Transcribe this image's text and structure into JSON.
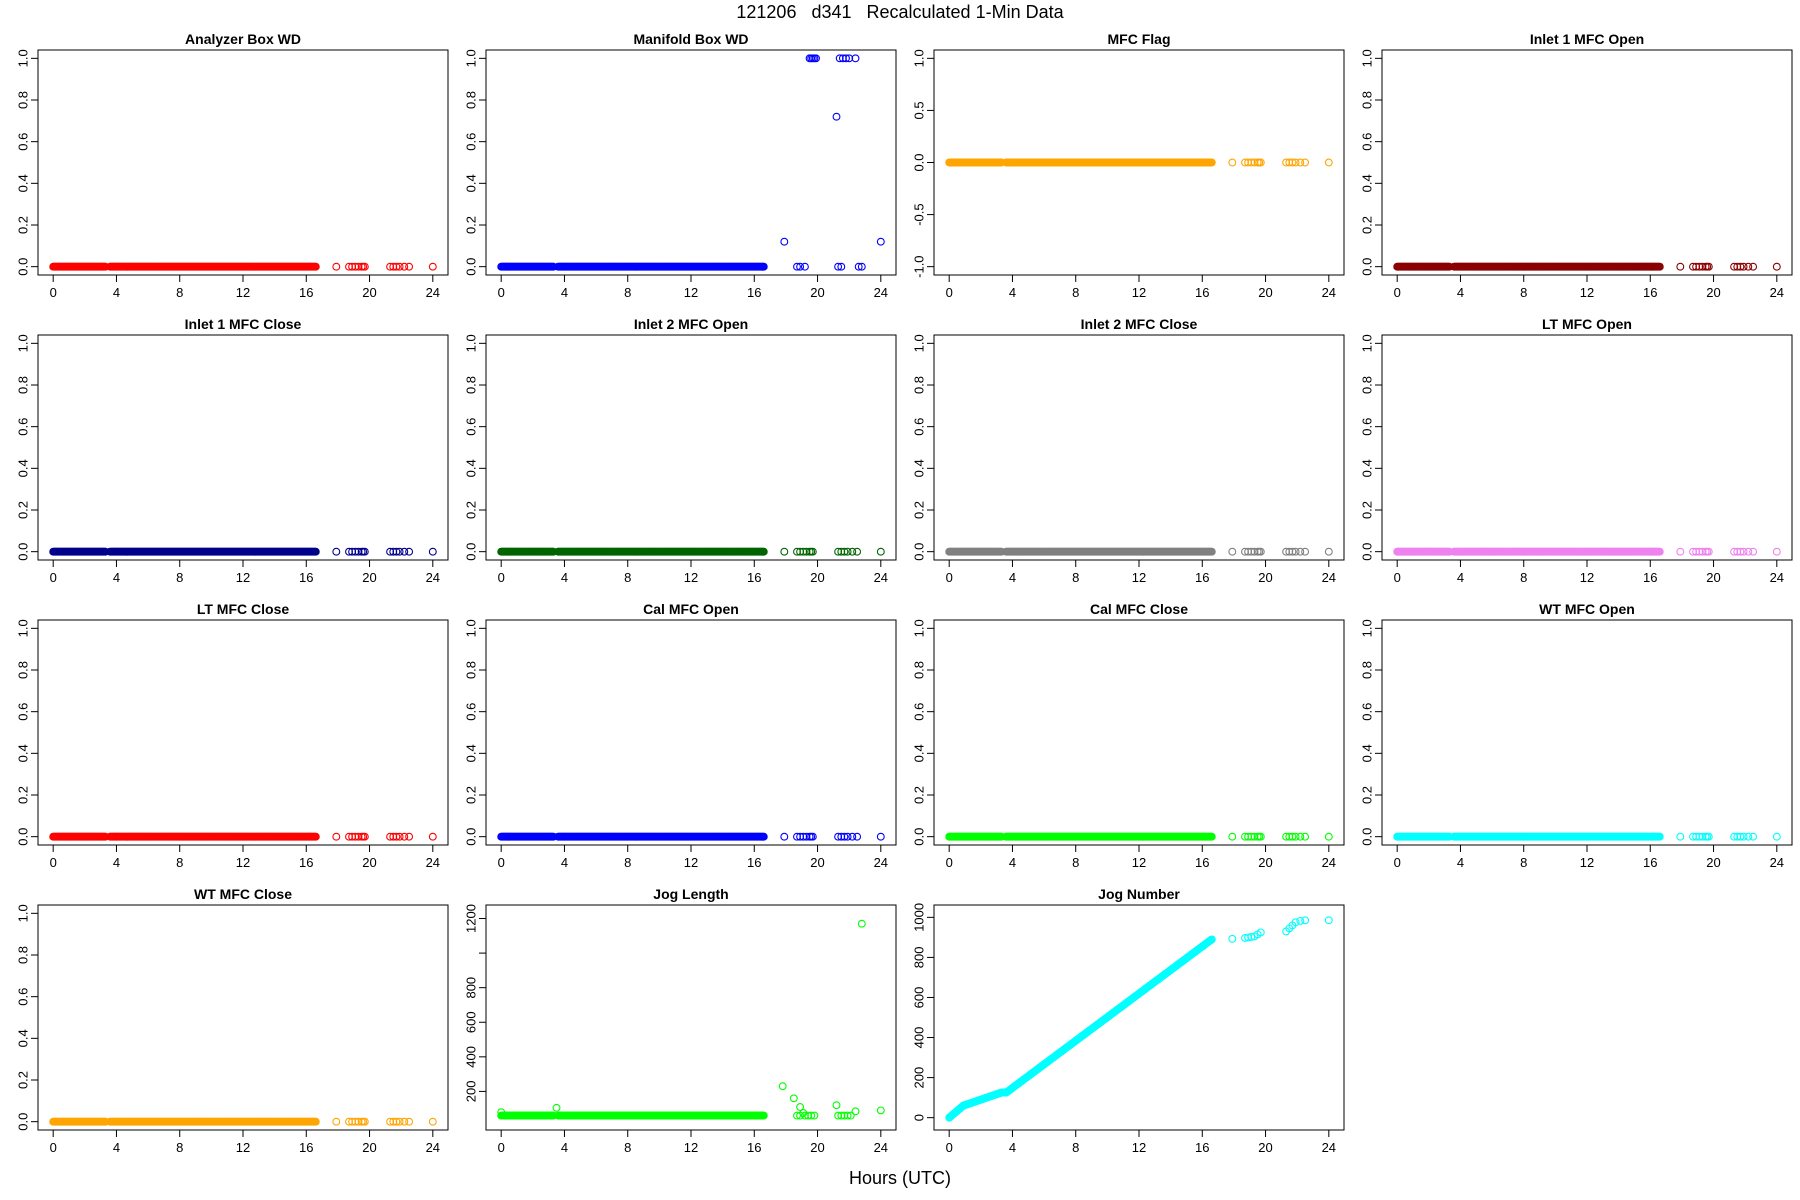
{
  "figure": {
    "title": "121206   d341   Recalculated 1-Min Data",
    "xlabel": "Hours (UTC)"
  },
  "chart_data": [
    {
      "type": "scatter",
      "title": "Analyzer Box WD",
      "color": "#ff0000",
      "xlim": [
        0,
        24
      ],
      "xticks": [
        0,
        4,
        8,
        12,
        16,
        20,
        24
      ],
      "ylim": [
        0,
        1
      ],
      "yticks": [
        "0.0",
        "0.2",
        "0.4",
        "0.6",
        "0.8",
        "1.0"
      ],
      "pattern": "zero",
      "segments": [
        [
          0,
          3.3
        ],
        [
          3.6,
          16.6
        ]
      ],
      "sparse_x": [
        17.9,
        18.7,
        18.9,
        19.1,
        19.3,
        19.5,
        19.6,
        19.7,
        21.3,
        21.5,
        21.7,
        21.9,
        22.2,
        22.5,
        24.0
      ]
    },
    {
      "type": "scatter",
      "title": "Manifold Box WD",
      "color": "#0000ff",
      "xlim": [
        0,
        24
      ],
      "xticks": [
        0,
        4,
        8,
        12,
        16,
        20,
        24
      ],
      "ylim": [
        0,
        1
      ],
      "yticks": [
        "0.0",
        "0.2",
        "0.4",
        "0.6",
        "0.8",
        "1.0"
      ],
      "pattern": "zero",
      "segments": [
        [
          0,
          3.3
        ],
        [
          3.6,
          16.6
        ]
      ],
      "sparse_x": [
        18.7,
        18.9,
        19.2,
        21.3,
        21.5
      ],
      "extra_points": [
        [
          17.9,
          0.12
        ],
        [
          19.5,
          1.0
        ],
        [
          19.6,
          1.0
        ],
        [
          19.7,
          1.0
        ],
        [
          19.8,
          1.0
        ],
        [
          19.9,
          1.0
        ],
        [
          21.2,
          0.72
        ],
        [
          21.4,
          1.0
        ],
        [
          21.6,
          1.0
        ],
        [
          21.8,
          1.0
        ],
        [
          22.0,
          1.0
        ],
        [
          22.4,
          1.0
        ],
        [
          22.6,
          0.0
        ],
        [
          22.8,
          0.0
        ],
        [
          24.0,
          0.12
        ]
      ]
    },
    {
      "type": "scatter",
      "title": "MFC Flag",
      "color": "#ffa500",
      "xlim": [
        0,
        24
      ],
      "xticks": [
        0,
        4,
        8,
        12,
        16,
        20,
        24
      ],
      "ylim": [
        -1,
        1
      ],
      "yticks": [
        "-1.0",
        "-0.5",
        "0.0",
        "0.5",
        "1.0"
      ],
      "pattern": "zero",
      "segments": [
        [
          0,
          3.3
        ],
        [
          3.6,
          16.6
        ]
      ],
      "sparse_x": [
        17.9,
        18.7,
        18.9,
        19.1,
        19.3,
        19.5,
        19.6,
        19.7,
        21.3,
        21.5,
        21.7,
        21.9,
        22.2,
        22.5,
        24.0
      ]
    },
    {
      "type": "scatter",
      "title": "Inlet 1 MFC Open",
      "color": "#8b0000",
      "xlim": [
        0,
        24
      ],
      "xticks": [
        0,
        4,
        8,
        12,
        16,
        20,
        24
      ],
      "ylim": [
        0,
        1
      ],
      "yticks": [
        "0.0",
        "0.2",
        "0.4",
        "0.6",
        "0.8",
        "1.0"
      ],
      "pattern": "zero",
      "segments": [
        [
          0,
          3.3
        ],
        [
          3.6,
          16.6
        ]
      ],
      "sparse_x": [
        17.9,
        18.7,
        18.9,
        19.1,
        19.3,
        19.5,
        19.6,
        19.7,
        21.3,
        21.5,
        21.7,
        21.9,
        22.2,
        22.5,
        24.0
      ]
    },
    {
      "type": "scatter",
      "title": "Inlet 1 MFC Close",
      "color": "#00008b",
      "xlim": [
        0,
        24
      ],
      "xticks": [
        0,
        4,
        8,
        12,
        16,
        20,
        24
      ],
      "ylim": [
        0,
        1
      ],
      "yticks": [
        "0.0",
        "0.2",
        "0.4",
        "0.6",
        "0.8",
        "1.0"
      ],
      "pattern": "zero",
      "segments": [
        [
          0,
          3.3
        ],
        [
          3.6,
          16.6
        ]
      ],
      "sparse_x": [
        17.9,
        18.7,
        18.9,
        19.1,
        19.3,
        19.5,
        19.6,
        19.7,
        21.3,
        21.5,
        21.7,
        21.9,
        22.2,
        22.5,
        24.0
      ]
    },
    {
      "type": "scatter",
      "title": "Inlet 2 MFC Open",
      "color": "#006400",
      "xlim": [
        0,
        24
      ],
      "xticks": [
        0,
        4,
        8,
        12,
        16,
        20,
        24
      ],
      "ylim": [
        0,
        1
      ],
      "yticks": [
        "0.0",
        "0.2",
        "0.4",
        "0.6",
        "0.8",
        "1.0"
      ],
      "pattern": "zero",
      "segments": [
        [
          0,
          3.3
        ],
        [
          3.6,
          16.6
        ]
      ],
      "sparse_x": [
        17.9,
        18.7,
        18.9,
        19.1,
        19.3,
        19.5,
        19.6,
        19.7,
        21.3,
        21.5,
        21.7,
        21.9,
        22.2,
        22.5,
        24.0
      ]
    },
    {
      "type": "scatter",
      "title": "Inlet 2 MFC Close",
      "color": "#808080",
      "xlim": [
        0,
        24
      ],
      "xticks": [
        0,
        4,
        8,
        12,
        16,
        20,
        24
      ],
      "ylim": [
        0,
        1
      ],
      "yticks": [
        "0.0",
        "0.2",
        "0.4",
        "0.6",
        "0.8",
        "1.0"
      ],
      "pattern": "zero",
      "segments": [
        [
          0,
          3.3
        ],
        [
          3.6,
          16.6
        ]
      ],
      "sparse_x": [
        17.9,
        18.7,
        18.9,
        19.1,
        19.3,
        19.5,
        19.6,
        19.7,
        21.3,
        21.5,
        21.7,
        21.9,
        22.2,
        22.5,
        24.0
      ]
    },
    {
      "type": "scatter",
      "title": "LT MFC Open",
      "color": "#ee82ee",
      "xlim": [
        0,
        24
      ],
      "xticks": [
        0,
        4,
        8,
        12,
        16,
        20,
        24
      ],
      "ylim": [
        0,
        1
      ],
      "yticks": [
        "0.0",
        "0.2",
        "0.4",
        "0.6",
        "0.8",
        "1.0"
      ],
      "pattern": "zero",
      "segments": [
        [
          0,
          3.3
        ],
        [
          3.6,
          16.6
        ]
      ],
      "sparse_x": [
        17.9,
        18.7,
        18.9,
        19.1,
        19.3,
        19.5,
        19.6,
        19.7,
        21.3,
        21.5,
        21.7,
        21.9,
        22.2,
        22.5,
        24.0
      ]
    },
    {
      "type": "scatter",
      "title": "LT MFC Close",
      "color": "#ff0000",
      "xlim": [
        0,
        24
      ],
      "xticks": [
        0,
        4,
        8,
        12,
        16,
        20,
        24
      ],
      "ylim": [
        0,
        1
      ],
      "yticks": [
        "0.0",
        "0.2",
        "0.4",
        "0.6",
        "0.8",
        "1.0"
      ],
      "pattern": "zero",
      "segments": [
        [
          0,
          3.3
        ],
        [
          3.6,
          16.6
        ]
      ],
      "sparse_x": [
        17.9,
        18.7,
        18.9,
        19.1,
        19.3,
        19.5,
        19.6,
        19.7,
        21.3,
        21.5,
        21.7,
        21.9,
        22.2,
        22.5,
        24.0
      ]
    },
    {
      "type": "scatter",
      "title": "Cal MFC Open",
      "color": "#0000ff",
      "xlim": [
        0,
        24
      ],
      "xticks": [
        0,
        4,
        8,
        12,
        16,
        20,
        24
      ],
      "ylim": [
        0,
        1
      ],
      "yticks": [
        "0.0",
        "0.2",
        "0.4",
        "0.6",
        "0.8",
        "1.0"
      ],
      "pattern": "zero",
      "segments": [
        [
          0,
          3.3
        ],
        [
          3.6,
          16.6
        ]
      ],
      "sparse_x": [
        17.9,
        18.7,
        18.9,
        19.1,
        19.3,
        19.5,
        19.6,
        19.7,
        21.3,
        21.5,
        21.7,
        21.9,
        22.2,
        22.5,
        24.0
      ]
    },
    {
      "type": "scatter",
      "title": "Cal MFC Close",
      "color": "#00ff00",
      "xlim": [
        0,
        24
      ],
      "xticks": [
        0,
        4,
        8,
        12,
        16,
        20,
        24
      ],
      "ylim": [
        0,
        1
      ],
      "yticks": [
        "0.0",
        "0.2",
        "0.4",
        "0.6",
        "0.8",
        "1.0"
      ],
      "pattern": "zero",
      "segments": [
        [
          0,
          3.3
        ],
        [
          3.6,
          16.6
        ]
      ],
      "sparse_x": [
        17.9,
        18.7,
        18.9,
        19.1,
        19.3,
        19.5,
        19.6,
        19.7,
        21.3,
        21.5,
        21.7,
        21.9,
        22.2,
        22.5,
        24.0
      ]
    },
    {
      "type": "scatter",
      "title": "WT MFC Open",
      "color": "#00ffff",
      "xlim": [
        0,
        24
      ],
      "xticks": [
        0,
        4,
        8,
        12,
        16,
        20,
        24
      ],
      "ylim": [
        0,
        1
      ],
      "yticks": [
        "0.0",
        "0.2",
        "0.4",
        "0.6",
        "0.8",
        "1.0"
      ],
      "pattern": "zero",
      "segments": [
        [
          0,
          3.3
        ],
        [
          3.6,
          16.6
        ]
      ],
      "sparse_x": [
        17.9,
        18.7,
        18.9,
        19.1,
        19.3,
        19.5,
        19.6,
        19.7,
        21.3,
        21.5,
        21.7,
        21.9,
        22.2,
        22.5,
        24.0
      ]
    },
    {
      "type": "scatter",
      "title": "WT MFC Close",
      "color": "#ffa500",
      "xlim": [
        0,
        24
      ],
      "xticks": [
        0,
        4,
        8,
        12,
        16,
        20,
        24
      ],
      "ylim": [
        0,
        1
      ],
      "yticks": [
        "0.0",
        "0.2",
        "0.4",
        "0.6",
        "0.8",
        "1.0"
      ],
      "pattern": "zero",
      "segments": [
        [
          0,
          3.3
        ],
        [
          3.6,
          16.6
        ]
      ],
      "sparse_x": [
        17.9,
        18.7,
        18.9,
        19.1,
        19.3,
        19.5,
        19.6,
        19.7,
        21.3,
        21.5,
        21.7,
        21.9,
        22.2,
        22.5,
        24.0
      ]
    },
    {
      "type": "scatter",
      "title": "Jog Length",
      "color": "#00ff00",
      "xlim": [
        0,
        24
      ],
      "xticks": [
        0,
        4,
        8,
        12,
        16,
        20,
        24
      ],
      "ylim": [
        25,
        1230
      ],
      "yticks": [
        "200",
        "400",
        "600",
        "800",
        "1000",
        "1200"
      ],
      "yticks_values": [
        200,
        400,
        600,
        800,
        1000,
        1200
      ],
      "yticks_visible": [
        200,
        400,
        600,
        800,
        1200
      ],
      "pattern": "level",
      "level": 60,
      "segments": [
        [
          0,
          3.3
        ],
        [
          3.6,
          16.6
        ]
      ],
      "sparse_x": [
        18.7,
        18.9,
        19.2,
        19.4,
        19.6,
        19.8,
        21.3,
        21.5,
        21.7,
        21.9,
        22.1
      ],
      "extra_points": [
        [
          0,
          80
        ],
        [
          3.5,
          105
        ],
        [
          17.8,
          230
        ],
        [
          18.5,
          160
        ],
        [
          18.9,
          110
        ],
        [
          19.1,
          75
        ],
        [
          21.2,
          120
        ],
        [
          22.4,
          85
        ],
        [
          22.8,
          1170
        ],
        [
          24.0,
          90
        ]
      ]
    },
    {
      "type": "scatter",
      "title": "Jog Number",
      "color": "#00ffff",
      "xlim": [
        0,
        24
      ],
      "xticks": [
        0,
        4,
        8,
        12,
        16,
        20,
        24
      ],
      "ylim": [
        -20,
        1020
      ],
      "yticks": [
        "0",
        "200",
        "400",
        "600",
        "800",
        "1000"
      ],
      "yticks_values": [
        0,
        200,
        400,
        600,
        800,
        1000
      ],
      "pattern": "ramp",
      "ramp": [
        [
          0,
          0
        ],
        [
          0.9,
          60
        ],
        [
          3.3,
          125
        ],
        [
          3.6,
          125
        ],
        [
          16.6,
          890
        ]
      ],
      "extra_points": [
        [
          17.9,
          893
        ],
        [
          18.7,
          897
        ],
        [
          18.9,
          900
        ],
        [
          19.1,
          902
        ],
        [
          19.3,
          905
        ],
        [
          19.5,
          915
        ],
        [
          19.7,
          925
        ],
        [
          21.3,
          930
        ],
        [
          21.5,
          945
        ],
        [
          21.7,
          960
        ],
        [
          21.9,
          975
        ],
        [
          22.2,
          982
        ],
        [
          22.5,
          985
        ],
        [
          24.0,
          985
        ]
      ]
    }
  ]
}
